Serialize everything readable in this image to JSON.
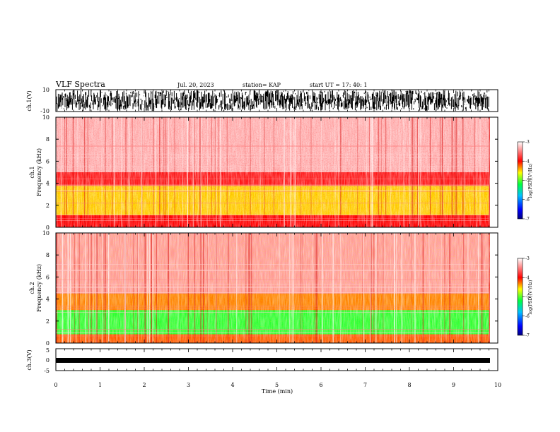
{
  "header": {
    "title": "VLF Spectra",
    "date": "Jul. 20, 2023",
    "station": "station= KAP",
    "start": "start UT =  17: 40: 1"
  },
  "chart_data": [
    {
      "type": "line",
      "id": "ch1-waveform",
      "ylabel": "ch.1(V)",
      "ylim": [
        -10,
        10
      ],
      "y_ticks": [
        "10",
        "-10"
      ],
      "x_range_min": [
        0,
        9.8
      ],
      "description_color": "#000000"
    },
    {
      "type": "heatmap",
      "id": "ch1-spectrogram",
      "ylabel_lines": [
        "ch.1",
        "Frequency (kHz)"
      ],
      "ylim": [
        0,
        10
      ],
      "y_ticks": [
        "0",
        "2",
        "4",
        "6",
        "8",
        "10"
      ],
      "x_range_min": [
        0,
        9.8
      ],
      "colorbar": {
        "label": "log(PSD)(V²/Hz)",
        "range": [
          -7,
          -3
        ],
        "ticks": [
          "-3",
          "-4",
          "-5",
          "-6",
          "-7"
        ]
      },
      "bands_khz": [
        {
          "from": 0.0,
          "to": 1.1,
          "level": -4.0
        },
        {
          "from": 1.1,
          "to": 3.8,
          "level": -4.5
        },
        {
          "from": 3.8,
          "to": 5.0,
          "level": -3.9
        },
        {
          "from": 5.0,
          "to": 10.0,
          "level": -3.3
        }
      ]
    },
    {
      "type": "heatmap",
      "id": "ch2-spectrogram",
      "ylabel_lines": [
        "ch.2",
        "Frequency (kHz)"
      ],
      "ylim": [
        0,
        10
      ],
      "y_ticks": [
        "0",
        "2",
        "4",
        "6",
        "8",
        "10"
      ],
      "x_range_min": [
        0,
        9.8
      ],
      "colorbar": {
        "label": "log(PSD)(V²/Hz)",
        "range": [
          -7,
          -3
        ],
        "ticks": [
          "-3",
          "-4",
          "-5",
          "-6",
          "-7"
        ]
      },
      "bands_khz": [
        {
          "from": 0.0,
          "to": 0.8,
          "level": -4.2
        },
        {
          "from": 0.8,
          "to": 3.0,
          "level": -5.1
        },
        {
          "from": 3.0,
          "to": 4.5,
          "level": -4.3
        },
        {
          "from": 4.5,
          "to": 10.0,
          "level": -3.4
        }
      ]
    },
    {
      "type": "line",
      "id": "ch3-waveform",
      "ylabel": "ch.3(V)",
      "ylim": [
        -5,
        5
      ],
      "y_ticks": [
        "5",
        "0",
        "-5"
      ],
      "x_range_min": [
        0,
        9.8
      ],
      "xlabel": "Time (min)",
      "x_ticks": [
        "0",
        "1",
        "2",
        "3",
        "4",
        "5",
        "6",
        "7",
        "8",
        "9",
        "10"
      ],
      "xlim": [
        0,
        10
      ]
    }
  ]
}
